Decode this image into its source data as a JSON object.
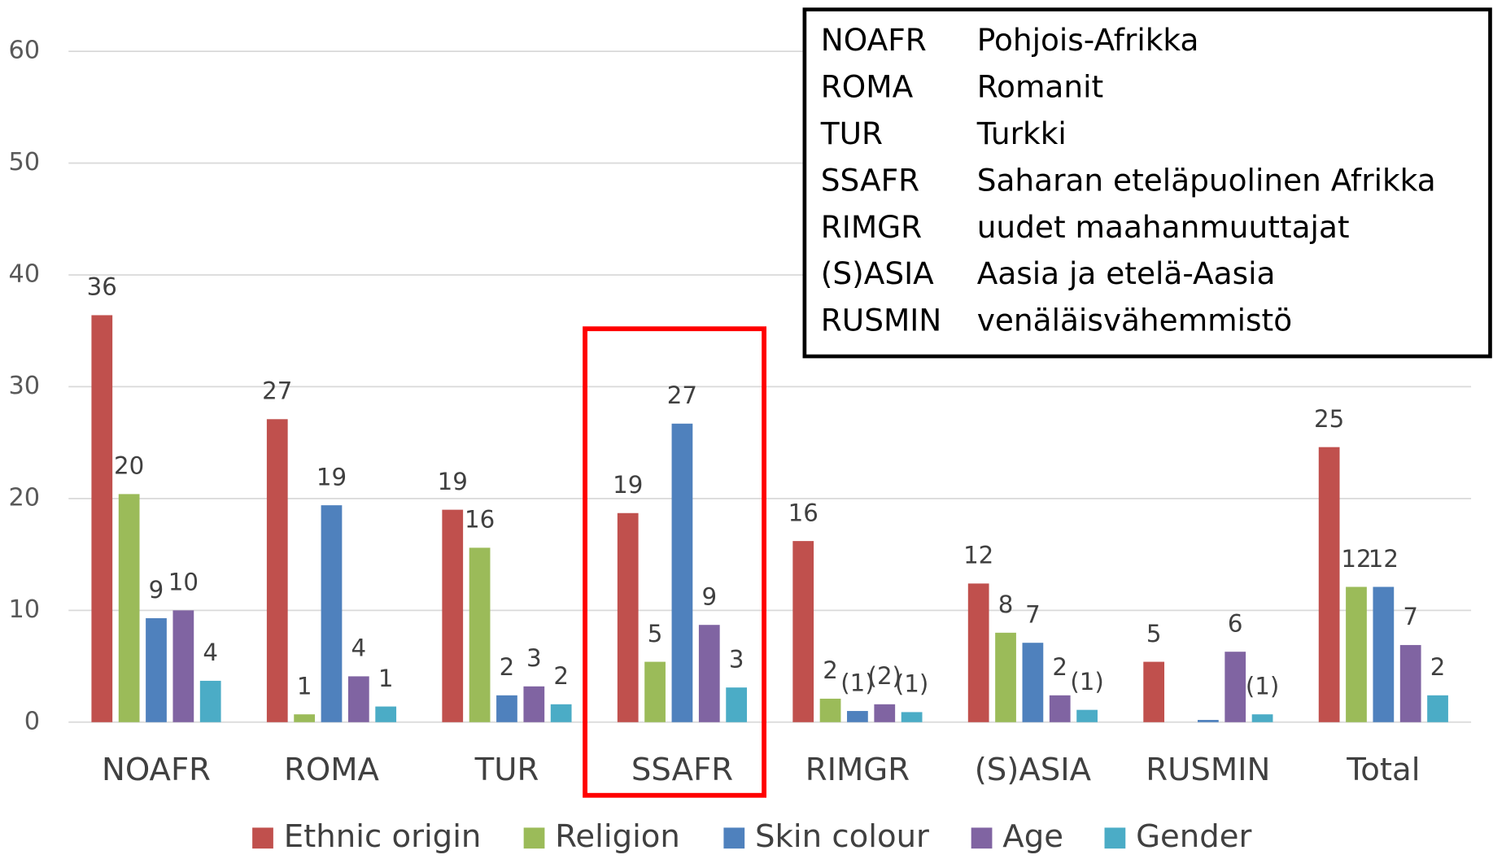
{
  "chart_data": {
    "type": "bar",
    "categories": [
      "NOAFR",
      "ROMA",
      "TUR",
      "SSAFR",
      "RIMGR",
      "(S)ASIA",
      "RUSMIN",
      "Total"
    ],
    "series": [
      {
        "name": "Ethnic origin",
        "color": "#c0504d",
        "values": [
          36.4,
          27.1,
          19.0,
          18.7,
          16.2,
          12.4,
          5.4,
          24.6
        ],
        "value_labels": [
          "36",
          "27",
          "19",
          "19",
          "16",
          "12",
          "5",
          "25"
        ]
      },
      {
        "name": "Religion",
        "color": "#9bbb59",
        "values": [
          20.4,
          0.7,
          15.6,
          5.4,
          2.1,
          8.0,
          null,
          12.1
        ],
        "value_labels": [
          "20",
          "1",
          "16",
          "5",
          "2",
          "8",
          null,
          "12"
        ]
      },
      {
        "name": "Skin colour",
        "color": "#4f81bd",
        "values": [
          9.3,
          19.4,
          2.4,
          26.7,
          1.0,
          7.1,
          0.2,
          12.1
        ],
        "value_labels": [
          "9",
          "19",
          "2",
          "27",
          "(1)",
          "7",
          null,
          "12"
        ]
      },
      {
        "name": "Age",
        "color": "#8064a2",
        "values": [
          10.0,
          4.1,
          3.2,
          8.7,
          1.6,
          2.4,
          6.3,
          6.9
        ],
        "value_labels": [
          "10",
          "4",
          "3",
          "9",
          "(2)",
          "2",
          "6",
          "7"
        ]
      },
      {
        "name": "Gender",
        "color": "#4bacc6",
        "values": [
          3.7,
          1.4,
          1.6,
          3.1,
          0.9,
          1.1,
          0.7,
          2.4
        ],
        "value_labels": [
          "4",
          "1",
          "2",
          "3",
          "(1)",
          "(1)",
          "(1)",
          "2"
        ]
      }
    ],
    "ylim": [
      0,
      60
    ],
    "yticks": [
      0,
      10,
      20,
      30,
      40,
      50,
      60
    ],
    "grid": true,
    "legend": "bottom",
    "highlight_index": 3,
    "abbreviations": [
      {
        "code": "NOAFR",
        "name": "Pohjois-Afrikka"
      },
      {
        "code": "ROMA",
        "name": "Romanit"
      },
      {
        "code": "TUR",
        "name": "Turkki"
      },
      {
        "code": "SSAFR",
        "name": "Saharan eteläpuolinen Afrikka"
      },
      {
        "code": "RIMGR",
        "name": "uudet maahanmuuttajat"
      },
      {
        "code": "(S)ASIA",
        "name": "Aasia ja etelä-Aasia"
      },
      {
        "code": "RUSMIN",
        "name": "venäläisvähemmistö"
      }
    ]
  }
}
